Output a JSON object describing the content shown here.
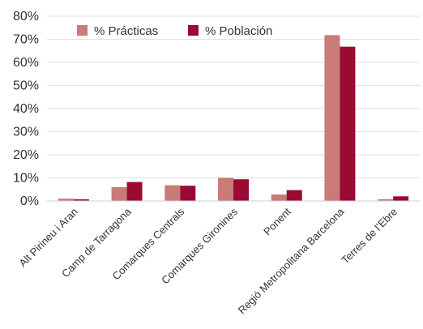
{
  "chart_data": {
    "type": "bar",
    "title": "",
    "xlabel": "",
    "ylabel": "",
    "categories": [
      "Alt Pirineu i Aran",
      "Camp de Tarragona",
      "Comarques Centrals",
      "Comarques Gironines",
      "Ponent",
      "Regió Metropolitana Barcelona",
      "Terres de l’Ebre"
    ],
    "series": [
      {
        "name": "% Prácticas",
        "color": "#c97b78",
        "values": [
          1.0,
          6.0,
          6.8,
          10.0,
          2.8,
          71.8,
          0.8
        ]
      },
      {
        "name": "% Población",
        "color": "#9b0a33",
        "values": [
          0.7,
          8.2,
          6.6,
          9.4,
          4.7,
          66.8,
          2.0
        ]
      }
    ],
    "ylim": [
      0,
      80
    ],
    "yticks": [
      "0%",
      "10%",
      "20%",
      "30%",
      "40%",
      "50%",
      "60%",
      "70%",
      "80%"
    ],
    "grid": true,
    "legend_position": "top-left"
  }
}
